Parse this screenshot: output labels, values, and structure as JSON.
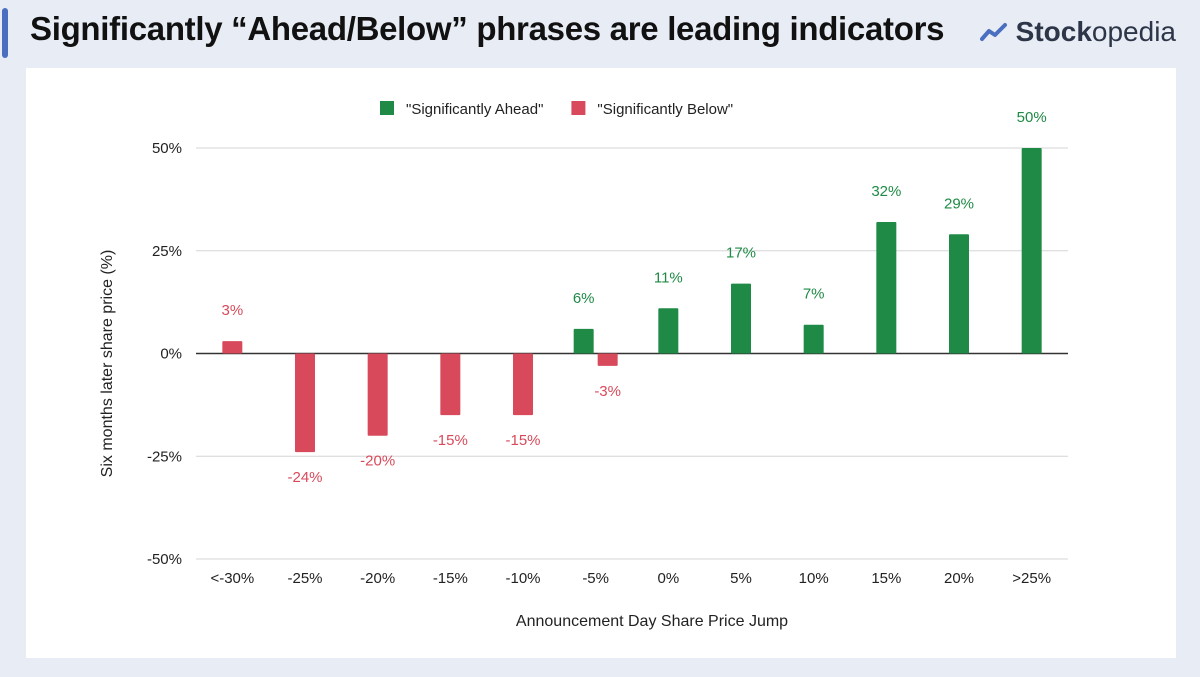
{
  "header": {
    "title": "Significantly “Ahead/Below” phrases are leading indicators",
    "brand_bold": "Stock",
    "brand_rest": "opedia",
    "brand_icon": "trend-line-icon"
  },
  "colors": {
    "ahead": "#1e8a45",
    "below": "#d84a5b",
    "accent": "#4a6fc1"
  },
  "chart_data": {
    "type": "bar",
    "title": "",
    "xlabel": "Announcement Day Share Price Jump",
    "ylabel": "Six months later share price (%)",
    "ylim": [
      -50,
      50
    ],
    "yticks": [
      50,
      25,
      0,
      -25,
      -50
    ],
    "ytick_labels": [
      "50%",
      "25%",
      "0%",
      "-25%",
      "-50%"
    ],
    "grid": true,
    "legend_position": "top-center",
    "categories": [
      "<-30%",
      "-25%",
      "-20%",
      "-15%",
      "-10%",
      "-5%",
      "0%",
      "5%",
      "10%",
      "15%",
      "20%",
      ">25%"
    ],
    "series": [
      {
        "name": "\"Significantly Ahead\"",
        "color": "#1e8a45",
        "values": [
          null,
          null,
          null,
          null,
          null,
          6,
          11,
          17,
          7,
          32,
          29,
          50
        ],
        "labels": [
          null,
          null,
          null,
          null,
          null,
          "6%",
          "11%",
          "17%",
          "7%",
          "32%",
          "29%",
          "50%"
        ]
      },
      {
        "name": "\"Significantly Below\"",
        "color": "#d84a5b",
        "values": [
          3,
          -24,
          -20,
          -15,
          -15,
          -3,
          null,
          null,
          null,
          null,
          null,
          null
        ],
        "labels": [
          "3%",
          "-24%",
          "-20%",
          "-15%",
          "-15%",
          "-3%",
          null,
          null,
          null,
          null,
          null,
          null
        ]
      }
    ]
  }
}
